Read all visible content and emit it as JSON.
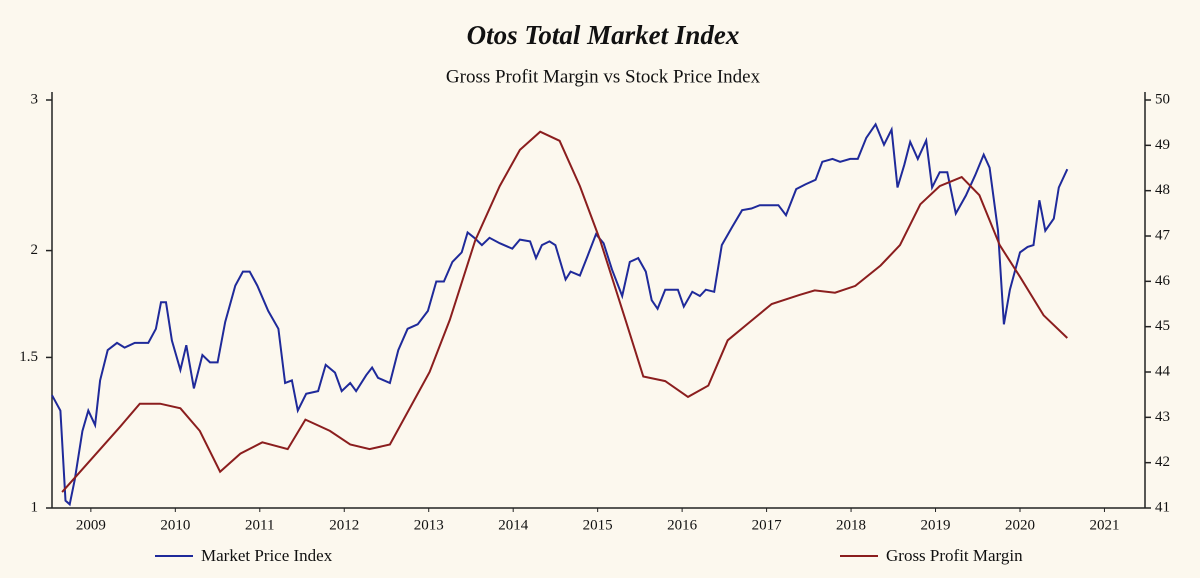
{
  "chart_data": {
    "type": "line",
    "title": "Otos Total Market Index",
    "subtitle": "Gross Profit Margin vs Stock Price Index",
    "xlim": [
      2009.04,
      2021.98
    ],
    "xticks": [
      {
        "value": 2009.5,
        "label": "2009"
      },
      {
        "value": 2010.5,
        "label": "2010"
      },
      {
        "value": 2011.5,
        "label": "2011"
      },
      {
        "value": 2012.5,
        "label": "2012"
      },
      {
        "value": 2013.5,
        "label": "2013"
      },
      {
        "value": 2014.5,
        "label": "2014"
      },
      {
        "value": 2015.5,
        "label": "2015"
      },
      {
        "value": 2016.5,
        "label": "2016"
      },
      {
        "value": 2017.5,
        "label": "2017"
      },
      {
        "value": 2018.5,
        "label": "2018"
      },
      {
        "value": 2019.5,
        "label": "2019"
      },
      {
        "value": 2020.5,
        "label": "2020"
      },
      {
        "value": 2021.5,
        "label": "2021"
      }
    ],
    "ylim": [
      1,
      3
    ],
    "ylog": true,
    "yticks": [
      1,
      1.5,
      2,
      3
    ],
    "y2lim": [
      41,
      50
    ],
    "y2ticks": [
      41,
      42,
      43,
      44,
      45,
      46,
      47,
      48,
      49,
      50
    ],
    "legend": "bottom",
    "series": [
      {
        "name": "Market Price Index",
        "color": "#1f2a9a",
        "x": [
          2009.04,
          2009.14,
          2009.2,
          2009.25,
          2009.31,
          2009.4,
          2009.47,
          2009.55,
          2009.61,
          2009.7,
          2009.81,
          2009.9,
          2010.02,
          2010.18,
          2010.27,
          2010.33,
          2010.39,
          2010.46,
          2010.56,
          2010.63,
          2010.72,
          2010.82,
          2010.91,
          2011.0,
          2011.09,
          2011.21,
          2011.3,
          2011.38,
          2011.47,
          2011.6,
          2011.72,
          2011.8,
          2011.88,
          2011.95,
          2012.05,
          2012.19,
          2012.28,
          2012.39,
          2012.47,
          2012.57,
          2012.64,
          2012.76,
          2012.83,
          2012.9,
          2013.04,
          2013.14,
          2013.25,
          2013.37,
          2013.49,
          2013.59,
          2013.68,
          2013.78,
          2013.89,
          2013.96,
          2014.04,
          2014.13,
          2014.22,
          2014.34,
          2014.49,
          2014.58,
          2014.7,
          2014.77,
          2014.84,
          2014.93,
          2015.0,
          2015.12,
          2015.18,
          2015.29,
          2015.38,
          2015.48,
          2015.57,
          2015.67,
          2015.79,
          2015.88,
          2015.98,
          2016.07,
          2016.14,
          2016.21,
          2016.3,
          2016.45,
          2016.52,
          2016.62,
          2016.71,
          2016.78,
          2016.88,
          2016.97,
          2017.09,
          2017.21,
          2017.32,
          2017.42,
          2017.56,
          2017.64,
          2017.73,
          2017.85,
          2017.96,
          2018.08,
          2018.16,
          2018.28,
          2018.37,
          2018.49,
          2018.58,
          2018.68,
          2018.79,
          2018.89,
          2018.98,
          2019.05,
          2019.13,
          2019.2,
          2019.29,
          2019.39,
          2019.46,
          2019.55,
          2019.64,
          2019.74,
          2019.86,
          2019.97,
          2020.07,
          2020.14,
          2020.24,
          2020.31,
          2020.38,
          2020.5,
          2020.59,
          2020.66,
          2020.73,
          2020.8,
          2020.9,
          2020.96,
          2021.06
        ],
        "values": [
          1.355,
          1.3,
          1.02,
          1.01,
          1.08,
          1.23,
          1.3,
          1.25,
          1.41,
          1.53,
          1.56,
          1.54,
          1.56,
          1.56,
          1.62,
          1.74,
          1.74,
          1.57,
          1.45,
          1.55,
          1.38,
          1.51,
          1.48,
          1.48,
          1.65,
          1.82,
          1.89,
          1.89,
          1.82,
          1.7,
          1.62,
          1.4,
          1.41,
          1.3,
          1.36,
          1.37,
          1.47,
          1.44,
          1.37,
          1.4,
          1.37,
          1.43,
          1.46,
          1.42,
          1.4,
          1.53,
          1.62,
          1.64,
          1.7,
          1.84,
          1.84,
          1.94,
          1.99,
          2.1,
          2.07,
          2.03,
          2.07,
          2.04,
          2.01,
          2.06,
          2.05,
          1.96,
          2.03,
          2.05,
          2.03,
          1.85,
          1.89,
          1.87,
          1.97,
          2.09,
          2.04,
          1.9,
          1.77,
          1.94,
          1.96,
          1.89,
          1.75,
          1.71,
          1.8,
          1.8,
          1.72,
          1.79,
          1.77,
          1.8,
          1.79,
          2.03,
          2.13,
          2.23,
          2.24,
          2.26,
          2.26,
          2.26,
          2.2,
          2.36,
          2.39,
          2.42,
          2.54,
          2.56,
          2.54,
          2.56,
          2.56,
          2.71,
          2.81,
          2.66,
          2.77,
          2.37,
          2.52,
          2.68,
          2.56,
          2.69,
          2.37,
          2.47,
          2.47,
          2.21,
          2.32,
          2.45,
          2.59,
          2.5,
          2.11,
          1.64,
          1.8,
          1.99,
          2.02,
          2.03,
          2.29,
          2.11,
          2.18,
          2.37,
          2.49
        ]
      },
      {
        "name": "Gross Profit Margin",
        "color": "#8b1e1e",
        "axis": "y2",
        "x": [
          2009.16,
          2009.85,
          2010.08,
          2010.32,
          2010.56,
          2010.79,
          2011.03,
          2011.27,
          2011.53,
          2011.83,
          2012.04,
          2012.33,
          2012.57,
          2012.8,
          2013.04,
          2013.51,
          2013.75,
          2014.05,
          2014.34,
          2014.58,
          2014.82,
          2015.05,
          2015.29,
          2015.53,
          2015.83,
          2016.04,
          2016.3,
          2016.57,
          2016.81,
          2017.04,
          2017.3,
          2017.56,
          2017.89,
          2018.07,
          2018.31,
          2018.55,
          2018.85,
          2019.08,
          2019.32,
          2019.55,
          2019.81,
          2020.02,
          2020.26,
          2020.5,
          2020.78,
          2021.06
        ],
        "values": [
          41.35,
          42.8,
          43.3,
          43.3,
          43.2,
          42.7,
          41.8,
          42.2,
          42.45,
          42.3,
          42.95,
          42.7,
          42.4,
          42.3,
          42.4,
          44.0,
          45.15,
          46.9,
          48.1,
          48.9,
          49.3,
          49.1,
          48.1,
          46.9,
          45.15,
          43.9,
          43.8,
          43.45,
          43.7,
          44.7,
          45.1,
          45.5,
          45.7,
          45.8,
          45.75,
          45.9,
          46.35,
          46.8,
          47.7,
          48.1,
          48.3,
          47.9,
          46.8,
          46.1,
          45.25,
          44.75
        ]
      }
    ]
  }
}
